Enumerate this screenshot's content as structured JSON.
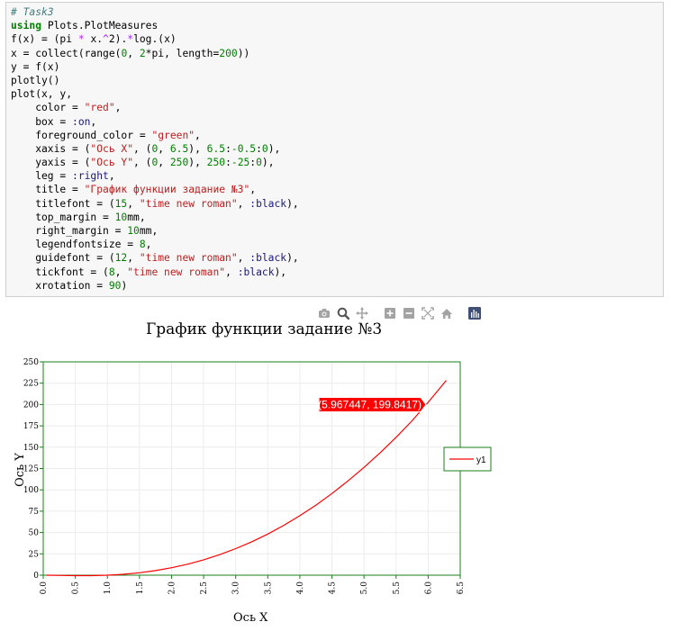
{
  "code": {
    "lines": [
      [
        {
          "t": "# Task3",
          "c": "comment"
        }
      ],
      [
        {
          "t": "using",
          "c": "kw"
        },
        {
          "t": " Plots.PlotMeasures",
          "c": ""
        }
      ],
      [
        {
          "t": "f(x) = (pi ",
          "c": ""
        },
        {
          "t": "*",
          "c": "op"
        },
        {
          "t": " x.",
          "c": ""
        },
        {
          "t": "^",
          "c": "op"
        },
        {
          "t": "2).",
          "c": ""
        },
        {
          "t": "*",
          "c": "op"
        },
        {
          "t": "log.(x)",
          "c": ""
        }
      ],
      [
        {
          "t": "x = collect(range(",
          "c": ""
        },
        {
          "t": "0",
          "c": "num"
        },
        {
          "t": ", ",
          "c": ""
        },
        {
          "t": "2",
          "c": "num"
        },
        {
          "t": "*pi, length=",
          "c": ""
        },
        {
          "t": "200",
          "c": "num"
        },
        {
          "t": "))",
          "c": ""
        }
      ],
      [
        {
          "t": "y = f(x)",
          "c": ""
        }
      ],
      [
        {
          "t": "plotly()",
          "c": ""
        }
      ],
      [
        {
          "t": "plot(x, y,",
          "c": ""
        }
      ],
      [
        {
          "t": "    color = ",
          "c": ""
        },
        {
          "t": "\"red\"",
          "c": "str"
        },
        {
          "t": ",",
          "c": ""
        }
      ],
      [
        {
          "t": "    box = ",
          "c": ""
        },
        {
          "t": ":on",
          "c": "sym"
        },
        {
          "t": ",",
          "c": ""
        }
      ],
      [
        {
          "t": "    foreground_color = ",
          "c": ""
        },
        {
          "t": "\"green\"",
          "c": "str"
        },
        {
          "t": ",",
          "c": ""
        }
      ],
      [
        {
          "t": "    xaxis = (",
          "c": ""
        },
        {
          "t": "\"Ось X\"",
          "c": "str"
        },
        {
          "t": ", (",
          "c": ""
        },
        {
          "t": "0",
          "c": "num"
        },
        {
          "t": ", ",
          "c": ""
        },
        {
          "t": "6.5",
          "c": "num"
        },
        {
          "t": "), ",
          "c": ""
        },
        {
          "t": "6.5",
          "c": "num"
        },
        {
          "t": ":",
          "c": ""
        },
        {
          "t": "-0.5",
          "c": "num"
        },
        {
          "t": ":",
          "c": ""
        },
        {
          "t": "0",
          "c": "num"
        },
        {
          "t": "),",
          "c": ""
        }
      ],
      [
        {
          "t": "    yaxis = (",
          "c": ""
        },
        {
          "t": "\"Ось Y\"",
          "c": "str"
        },
        {
          "t": ", (",
          "c": ""
        },
        {
          "t": "0",
          "c": "num"
        },
        {
          "t": ", ",
          "c": ""
        },
        {
          "t": "250",
          "c": "num"
        },
        {
          "t": "), ",
          "c": ""
        },
        {
          "t": "250",
          "c": "num"
        },
        {
          "t": ":",
          "c": ""
        },
        {
          "t": "-25",
          "c": "num"
        },
        {
          "t": ":",
          "c": ""
        },
        {
          "t": "0",
          "c": "num"
        },
        {
          "t": "),",
          "c": ""
        }
      ],
      [
        {
          "t": "    leg = ",
          "c": ""
        },
        {
          "t": ":right",
          "c": "sym"
        },
        {
          "t": ",",
          "c": ""
        }
      ],
      [
        {
          "t": "    title = ",
          "c": ""
        },
        {
          "t": "\"График функции задание №3\"",
          "c": "str"
        },
        {
          "t": ",",
          "c": ""
        }
      ],
      [
        {
          "t": "    titlefont = (",
          "c": ""
        },
        {
          "t": "15",
          "c": "num"
        },
        {
          "t": ", ",
          "c": ""
        },
        {
          "t": "\"time new roman\"",
          "c": "str"
        },
        {
          "t": ", ",
          "c": ""
        },
        {
          "t": ":black",
          "c": "sym"
        },
        {
          "t": "),",
          "c": ""
        }
      ],
      [
        {
          "t": "    top_margin = ",
          "c": ""
        },
        {
          "t": "10",
          "c": "num"
        },
        {
          "t": "mm,",
          "c": ""
        }
      ],
      [
        {
          "t": "    right_margin = ",
          "c": ""
        },
        {
          "t": "10",
          "c": "num"
        },
        {
          "t": "mm,",
          "c": ""
        }
      ],
      [
        {
          "t": "    legendfontsize = ",
          "c": ""
        },
        {
          "t": "8",
          "c": "num"
        },
        {
          "t": ",",
          "c": ""
        }
      ],
      [
        {
          "t": "    guidefont = (",
          "c": ""
        },
        {
          "t": "12",
          "c": "num"
        },
        {
          "t": ", ",
          "c": ""
        },
        {
          "t": "\"time new roman\"",
          "c": "str"
        },
        {
          "t": ", ",
          "c": ""
        },
        {
          "t": ":black",
          "c": "sym"
        },
        {
          "t": "),",
          "c": ""
        }
      ],
      [
        {
          "t": "    tickfont = (",
          "c": ""
        },
        {
          "t": "8",
          "c": "num"
        },
        {
          "t": ", ",
          "c": ""
        },
        {
          "t": "\"time new roman\"",
          "c": "str"
        },
        {
          "t": ", ",
          "c": ""
        },
        {
          "t": ":black",
          "c": "sym"
        },
        {
          "t": "),",
          "c": ""
        }
      ],
      [
        {
          "t": "    xrotation = ",
          "c": ""
        },
        {
          "t": "90",
          "c": "num"
        },
        {
          "t": ")",
          "c": ""
        }
      ]
    ]
  },
  "modebar": {
    "buttons": [
      {
        "name": "camera-icon",
        "gap_after": false
      },
      {
        "name": "zoom-icon",
        "gap_after": false
      },
      {
        "name": "pan-icon",
        "gap_after": true
      },
      {
        "name": "zoom-in-icon",
        "gap_after": false
      },
      {
        "name": "zoom-out-icon",
        "gap_after": false
      },
      {
        "name": "autoscale-icon",
        "gap_after": false
      },
      {
        "name": "home-icon",
        "gap_after": true
      },
      {
        "name": "plotly-logo-icon",
        "gap_after": false
      }
    ]
  },
  "chart_data": {
    "type": "line",
    "title": "График функции задание №3",
    "xlabel": "Ось X",
    "ylabel": "Ось Y",
    "xlim": [
      0,
      6.5
    ],
    "ylim": [
      0,
      250
    ],
    "xticks": [
      "0.0",
      "0.5",
      "1.0",
      "1.5",
      "2.0",
      "2.5",
      "3.0",
      "3.5",
      "4.0",
      "4.5",
      "5.0",
      "5.5",
      "6.0",
      "6.5"
    ],
    "yticks": [
      "0",
      "25",
      "50",
      "75",
      "100",
      "125",
      "150",
      "175",
      "200",
      "225",
      "250"
    ],
    "grid": true,
    "box": true,
    "foreground_color": "#1a7f1a",
    "series": [
      {
        "name": "y1",
        "color": "#ff0000",
        "x": [
          0.05,
          0.3,
          0.5,
          0.75,
          1.0,
          1.25,
          1.5,
          1.75,
          2.0,
          2.25,
          2.5,
          2.75,
          3.0,
          3.25,
          3.5,
          3.75,
          4.0,
          4.25,
          4.5,
          4.75,
          5.0,
          5.25,
          5.5,
          5.75,
          6.0,
          6.283
        ],
        "y": [
          -0.02,
          -0.34,
          -0.54,
          -0.51,
          0,
          1.1,
          2.87,
          5.4,
          8.71,
          12.9,
          18.0,
          24.0,
          31.1,
          39.1,
          48.2,
          58.4,
          69.7,
          82.1,
          95.7,
          110.4,
          126.4,
          143.4,
          161.6,
          181.0,
          202.6,
          228.3
        ]
      }
    ],
    "legend": {
      "position": "right",
      "entries": [
        "y1"
      ]
    },
    "hover_label": {
      "text": "(5.967447, 199.8417)",
      "x": 5.967447,
      "y": 199.8417,
      "color": "#ff0000"
    }
  }
}
